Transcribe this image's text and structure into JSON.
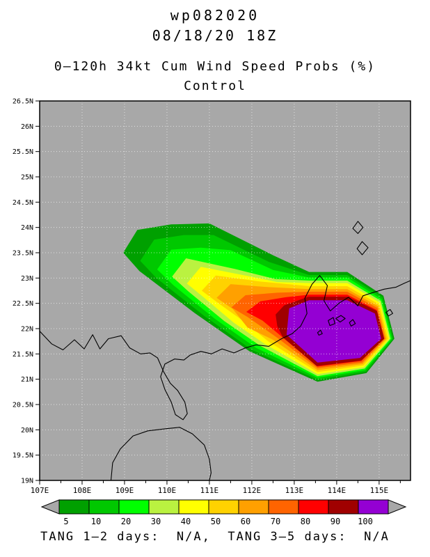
{
  "header": {
    "storm_id": "wp082020",
    "datetime": "08/18/20 18Z",
    "product": "0–120h 34kt Cum Wind Speed Probs (%)",
    "model": "Control"
  },
  "footer": {
    "text": "TANG 1–2 days:  N/A,  TANG 3–5 days:  N/A"
  },
  "map": {
    "lon_min": 107,
    "lon_max": 115.74,
    "lat_min": 19,
    "lat_max": 26.5,
    "bg": "#a8a8a8",
    "grid_lons": [
      108,
      109,
      110,
      111,
      112,
      113,
      114,
      115
    ],
    "grid_lats": [
      19.5,
      20,
      20.5,
      21,
      21.5,
      22,
      22.5,
      23,
      23.5,
      24,
      24.5,
      25,
      25.5,
      26
    ],
    "x_axis": {
      "tick_values": [
        107,
        108,
        109,
        110,
        111,
        112,
        113,
        114,
        115
      ],
      "tick_labels": [
        "107E",
        "108E",
        "109E",
        "110E",
        "111E",
        "112E",
        "113E",
        "114E",
        "115E"
      ],
      "minor_ticks": [
        107.5,
        108.5,
        109.5,
        110.5,
        111.5,
        112.5,
        113.5,
        114.5,
        115.5
      ]
    },
    "y_axis": {
      "tick_values": [
        26.5,
        26,
        25.5,
        25,
        24.5,
        24,
        23.5,
        23,
        22.5,
        22,
        21.5,
        21,
        20.5,
        20,
        19.5,
        19
      ],
      "tick_labels": [
        "26.5N",
        "26N",
        "25.5N",
        "25N",
        "24.5N",
        "24N",
        "23.5N",
        "23N",
        "22.5N",
        "22N",
        "21.5N",
        "21N",
        "20.5N",
        "20N",
        "19.5N",
        "19N"
      ]
    }
  },
  "chart_data": {
    "type": "filled-contour-map",
    "title": "0–120h 34kt Cum Wind Speed Probs (%)",
    "subtitle": "Control",
    "storm": "wp082020",
    "valid_time": "08/18/20 18Z",
    "units": "%",
    "levels_percent": [
      5,
      10,
      20,
      30,
      40,
      50,
      60,
      70,
      80,
      90,
      100
    ],
    "colorbar": {
      "labels": [
        "5",
        "10",
        "20",
        "30",
        "40",
        "50",
        "60",
        "70",
        "80",
        "90",
        "100"
      ],
      "colors": [
        "#00a000",
        "#00c800",
        "#00ff00",
        "#baf240",
        "#ffff00",
        "#ffd200",
        "#ffa000",
        "#ff6400",
        "#ff0000",
        "#a00000",
        "#9400d3"
      ],
      "endcap_color": "#a8a8a8"
    },
    "bands": [
      {
        "level": 5,
        "color": "#00a000",
        "polygon": [
          [
            108.97,
            23.5
          ],
          [
            109.3,
            23.95
          ],
          [
            110.1,
            24.06
          ],
          [
            111.0,
            24.08
          ],
          [
            112.5,
            23.45
          ],
          [
            113.35,
            23.12
          ],
          [
            114.25,
            23.12
          ],
          [
            115.1,
            22.65
          ],
          [
            115.36,
            21.8
          ],
          [
            114.7,
            21.12
          ],
          [
            113.55,
            20.95
          ],
          [
            111.95,
            21.55
          ],
          [
            110.65,
            22.31
          ],
          [
            109.35,
            23.14
          ]
        ]
      },
      {
        "level": 10,
        "color": "#00c800",
        "polygon": [
          [
            109.37,
            23.34
          ],
          [
            109.7,
            23.76
          ],
          [
            110.4,
            23.85
          ],
          [
            111.1,
            23.85
          ],
          [
            112.4,
            23.32
          ],
          [
            113.35,
            23.06
          ],
          [
            114.25,
            23.06
          ],
          [
            115.08,
            22.62
          ],
          [
            115.33,
            21.8
          ],
          [
            114.69,
            21.15
          ],
          [
            113.55,
            20.99
          ],
          [
            112.0,
            21.58
          ],
          [
            110.88,
            22.25
          ],
          [
            109.75,
            23.0
          ]
        ]
      },
      {
        "level": 20,
        "color": "#00ff00",
        "polygon": [
          [
            109.77,
            23.17
          ],
          [
            110.1,
            23.56
          ],
          [
            110.8,
            23.6
          ],
          [
            111.5,
            23.55
          ],
          [
            112.5,
            23.16
          ],
          [
            113.35,
            23.01
          ],
          [
            114.25,
            23.01
          ],
          [
            115.06,
            22.58
          ],
          [
            115.3,
            21.8
          ],
          [
            114.67,
            21.18
          ],
          [
            113.55,
            21.03
          ],
          [
            112.1,
            21.62
          ],
          [
            111.12,
            22.2
          ],
          [
            110.15,
            22.86
          ]
        ]
      },
      {
        "level": 30,
        "color": "#baf240",
        "polygon": [
          [
            110.12,
            23.03
          ],
          [
            110.45,
            23.39
          ],
          [
            111.6,
            23.18
          ],
          [
            112.55,
            22.98
          ],
          [
            113.35,
            22.95
          ],
          [
            114.25,
            22.95
          ],
          [
            115.04,
            22.55
          ],
          [
            115.27,
            21.8
          ],
          [
            114.66,
            21.21
          ],
          [
            113.55,
            21.06
          ],
          [
            112.2,
            21.66
          ],
          [
            111.35,
            22.15
          ],
          [
            110.5,
            22.74
          ]
        ]
      },
      {
        "level": 40,
        "color": "#ffff00",
        "polygon": [
          [
            110.47,
            22.89
          ],
          [
            110.8,
            23.22
          ],
          [
            111.9,
            23.04
          ],
          [
            112.6,
            22.92
          ],
          [
            113.35,
            22.9
          ],
          [
            114.25,
            22.9
          ],
          [
            115.02,
            22.51
          ],
          [
            115.24,
            21.8
          ],
          [
            114.64,
            21.24
          ],
          [
            113.55,
            21.1
          ],
          [
            112.3,
            21.7
          ],
          [
            111.57,
            22.12
          ],
          [
            110.85,
            22.63
          ]
        ]
      },
      {
        "level": 50,
        "color": "#ffd200",
        "polygon": [
          [
            110.82,
            22.75
          ],
          [
            111.15,
            23.05
          ],
          [
            112.2,
            22.93
          ],
          [
            113.35,
            22.84
          ],
          [
            114.25,
            22.84
          ],
          [
            115.0,
            22.48
          ],
          [
            115.21,
            21.8
          ],
          [
            114.63,
            21.27
          ],
          [
            113.55,
            21.14
          ],
          [
            112.4,
            21.74
          ],
          [
            111.8,
            22.15
          ],
          [
            111.2,
            22.51
          ]
        ]
      },
      {
        "level": 60,
        "color": "#ffa000",
        "polygon": [
          [
            111.17,
            22.61
          ],
          [
            111.5,
            22.88
          ],
          [
            112.4,
            22.82
          ],
          [
            113.35,
            22.78
          ],
          [
            114.25,
            22.78
          ],
          [
            114.98,
            22.44
          ],
          [
            115.17,
            21.8
          ],
          [
            114.61,
            21.3
          ],
          [
            113.55,
            21.18
          ],
          [
            112.5,
            21.78
          ],
          [
            111.9,
            22.02
          ],
          [
            111.55,
            22.39
          ]
        ]
      },
      {
        "level": 70,
        "color": "#ff6400",
        "polygon": [
          [
            111.52,
            22.42
          ],
          [
            111.85,
            22.66
          ],
          [
            112.6,
            22.71
          ],
          [
            113.35,
            22.73
          ],
          [
            114.25,
            22.73
          ],
          [
            114.96,
            22.41
          ],
          [
            115.14,
            21.8
          ],
          [
            114.6,
            21.33
          ],
          [
            113.55,
            21.22
          ],
          [
            112.6,
            21.82
          ],
          [
            111.9,
            22.23
          ]
        ]
      },
      {
        "level": 80,
        "color": "#ff0000",
        "polygon": [
          [
            111.87,
            22.33
          ],
          [
            112.2,
            22.54
          ],
          [
            112.8,
            22.62
          ],
          [
            113.35,
            22.67
          ],
          [
            114.25,
            22.67
          ],
          [
            114.94,
            22.37
          ],
          [
            115.11,
            21.8
          ],
          [
            114.58,
            21.36
          ],
          [
            113.55,
            21.25
          ],
          [
            112.68,
            21.86
          ],
          [
            112.25,
            22.16
          ]
        ]
      },
      {
        "level": 90,
        "color": "#a00000",
        "polygon": [
          [
            112.56,
            22.28
          ],
          [
            112.76,
            22.46
          ],
          [
            113.33,
            22.63
          ],
          [
            114.27,
            22.63
          ],
          [
            114.95,
            22.35
          ],
          [
            115.12,
            21.8
          ],
          [
            114.58,
            21.37
          ],
          [
            113.53,
            21.26
          ],
          [
            112.73,
            21.83
          ],
          [
            112.6,
            22.05
          ]
        ]
      },
      {
        "level": 100,
        "color": "#9400d3",
        "polygon": [
          [
            112.88,
            22.4
          ],
          [
            113.35,
            22.56
          ],
          [
            114.25,
            22.56
          ],
          [
            114.9,
            22.3
          ],
          [
            115.05,
            21.8
          ],
          [
            114.55,
            21.42
          ],
          [
            113.55,
            21.33
          ],
          [
            112.82,
            21.88
          ]
        ]
      }
    ],
    "coastlines": [
      {
        "name": "south-china-coast",
        "closed": false,
        "pts": [
          [
            107.0,
            21.95
          ],
          [
            107.28,
            21.7
          ],
          [
            107.55,
            21.58
          ],
          [
            107.82,
            21.78
          ],
          [
            108.05,
            21.6
          ],
          [
            108.25,
            21.88
          ],
          [
            108.42,
            21.6
          ],
          [
            108.62,
            21.8
          ],
          [
            108.92,
            21.86
          ],
          [
            109.12,
            21.62
          ],
          [
            109.38,
            21.5
          ],
          [
            109.6,
            21.52
          ],
          [
            109.78,
            21.42
          ],
          [
            109.92,
            21.15
          ],
          [
            110.08,
            20.92
          ],
          [
            110.25,
            20.78
          ],
          [
            110.42,
            20.55
          ],
          [
            110.48,
            20.32
          ],
          [
            110.38,
            20.2
          ],
          [
            110.2,
            20.3
          ],
          [
            110.1,
            20.55
          ],
          [
            109.95,
            20.8
          ],
          [
            109.85,
            21.05
          ],
          [
            109.95,
            21.3
          ],
          [
            110.18,
            21.4
          ],
          [
            110.4,
            21.38
          ],
          [
            110.55,
            21.48
          ],
          [
            110.8,
            21.55
          ],
          [
            111.05,
            21.5
          ],
          [
            111.3,
            21.6
          ],
          [
            111.58,
            21.52
          ],
          [
            111.85,
            21.62
          ],
          [
            112.1,
            21.68
          ],
          [
            112.4,
            21.65
          ],
          [
            112.7,
            21.8
          ],
          [
            112.95,
            21.9
          ],
          [
            113.15,
            22.05
          ],
          [
            113.3,
            22.3
          ],
          [
            113.25,
            22.6
          ],
          [
            113.42,
            22.88
          ],
          [
            113.6,
            23.05
          ],
          [
            113.78,
            22.85
          ],
          [
            113.7,
            22.55
          ],
          [
            113.85,
            22.35
          ],
          [
            114.05,
            22.5
          ],
          [
            114.28,
            22.62
          ],
          [
            114.5,
            22.45
          ],
          [
            114.62,
            22.65
          ],
          [
            114.88,
            22.72
          ],
          [
            115.12,
            22.78
          ],
          [
            115.4,
            22.82
          ],
          [
            115.6,
            22.9
          ],
          [
            115.74,
            22.95
          ]
        ]
      },
      {
        "name": "hainan-coast",
        "closed": false,
        "pts": [
          [
            108.68,
            19.0
          ],
          [
            108.72,
            19.35
          ],
          [
            108.9,
            19.62
          ],
          [
            109.2,
            19.88
          ],
          [
            109.55,
            19.98
          ],
          [
            109.95,
            20.02
          ],
          [
            110.3,
            20.05
          ],
          [
            110.6,
            19.92
          ],
          [
            110.88,
            19.7
          ],
          [
            111.0,
            19.42
          ],
          [
            111.04,
            19.15
          ],
          [
            111.0,
            19.0
          ]
        ]
      },
      {
        "name": "hong-kong-island",
        "closed": true,
        "pts": [
          [
            113.98,
            22.2
          ],
          [
            114.1,
            22.26
          ],
          [
            114.2,
            22.2
          ],
          [
            114.08,
            22.13
          ]
        ]
      },
      {
        "name": "lantau-island",
        "closed": true,
        "pts": [
          [
            113.8,
            22.16
          ],
          [
            113.92,
            22.22
          ],
          [
            113.96,
            22.1
          ],
          [
            113.84,
            22.06
          ]
        ]
      },
      {
        "name": "island-east",
        "closed": true,
        "pts": [
          [
            114.3,
            22.12
          ],
          [
            114.38,
            22.18
          ],
          [
            114.44,
            22.1
          ],
          [
            114.34,
            22.05
          ]
        ]
      },
      {
        "name": "island-southwest",
        "closed": true,
        "pts": [
          [
            113.55,
            21.92
          ],
          [
            113.62,
            21.97
          ],
          [
            113.66,
            21.9
          ],
          [
            113.58,
            21.87
          ]
        ]
      },
      {
        "name": "inland-water-1",
        "closed": true,
        "pts": [
          [
            114.38,
            23.98
          ],
          [
            114.5,
            24.12
          ],
          [
            114.62,
            24.0
          ],
          [
            114.5,
            23.88
          ]
        ]
      },
      {
        "name": "inland-water-2",
        "closed": true,
        "pts": [
          [
            114.48,
            23.58
          ],
          [
            114.6,
            23.72
          ],
          [
            114.74,
            23.6
          ],
          [
            114.6,
            23.46
          ]
        ]
      },
      {
        "name": "island-northeast",
        "closed": true,
        "pts": [
          [
            115.16,
            22.32
          ],
          [
            115.26,
            22.38
          ],
          [
            115.32,
            22.3
          ],
          [
            115.22,
            22.25
          ]
        ]
      }
    ]
  }
}
